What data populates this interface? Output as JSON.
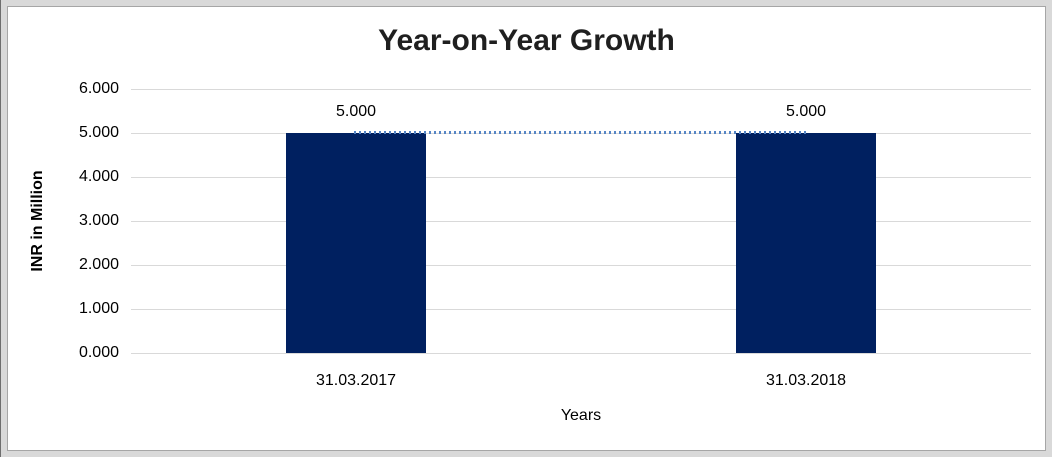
{
  "chart_data": {
    "type": "bar",
    "title": "Year-on-Year Growth",
    "categories": [
      "31.03.2017",
      "31.03.2018"
    ],
    "values": [
      5.0,
      5.0
    ],
    "data_labels": [
      "5.000",
      "5.000"
    ],
    "xlabel": "Years",
    "ylabel": "INR in Million",
    "ylim": [
      0,
      6
    ],
    "yticks": [
      "6.000",
      "5.000",
      "4.000",
      "3.000",
      "2.000",
      "1.000",
      "0.000"
    ],
    "grid": "horizontal-on",
    "legend": "none",
    "trendline": {
      "style": "dotted",
      "value": 5.0,
      "color": "#5585C5"
    },
    "colors": {
      "bar": "#002060",
      "gridline": "#D9D9D9",
      "trend_dots": "#5585C5",
      "title_text": "#1F1F1F",
      "axis_text": "#000000",
      "frame_bg": "#D9D9D9",
      "chart_bg": "#FFFFFF"
    }
  }
}
